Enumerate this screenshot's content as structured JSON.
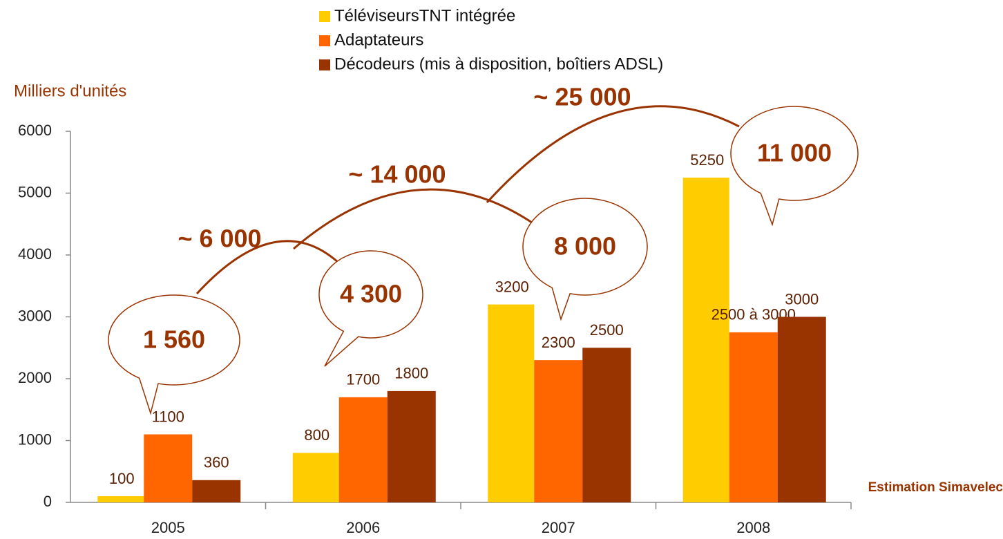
{
  "chart_data": {
    "type": "bar",
    "y_label": "Milliers d'unités",
    "categories": [
      "2005",
      "2006",
      "2007",
      "2008"
    ],
    "series": [
      {
        "name": "TéléviseursTNT  intégrée",
        "color": "#FFCC00",
        "values": [
          100,
          800,
          3200,
          5250
        ]
      },
      {
        "name": "Adaptateurs",
        "color": "#FF6600",
        "values": [
          1100,
          1700,
          2300,
          2750
        ],
        "value_labels": [
          "1100",
          "1700",
          "2300",
          "2500 à 3000"
        ]
      },
      {
        "name": "Décodeurs (mis à disposition, boîtiers ADSL)",
        "color": "#993300",
        "values": [
          360,
          1800,
          2500,
          3000
        ]
      }
    ],
    "ylim": [
      0,
      6000
    ],
    "yticks": [
      0,
      1000,
      2000,
      3000,
      4000,
      5000,
      6000
    ],
    "legend": "top",
    "annotations": {
      "totals": [
        "1 560",
        "4 300",
        "8 000",
        "11 000"
      ],
      "cumulative": [
        "~ 6 000",
        "~ 14 000",
        "~ 25 000"
      ],
      "source": "Estimation Simavelec"
    }
  }
}
